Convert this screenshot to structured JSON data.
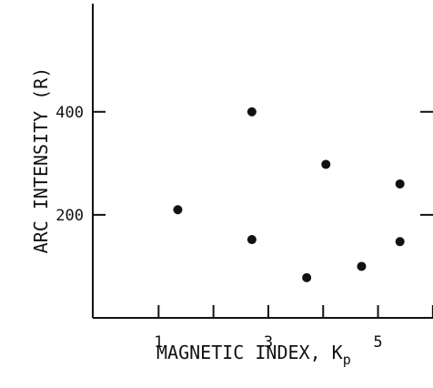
{
  "chart_data": {
    "type": "scatter",
    "xlabel": "MAGNETIC INDEX, K",
    "xlabel_subscript": "p",
    "ylabel": "ARC INTENSITY (R)",
    "xlim": [
      -0.2,
      6.5
    ],
    "ylim": [
      0,
      610
    ],
    "x_ticks": [
      1,
      2,
      3,
      4,
      5,
      6
    ],
    "x_tick_labels": [
      "1",
      "3",
      "5"
    ],
    "x_labeled_ticks": [
      1,
      3,
      5
    ],
    "y_ticks": [
      200,
      400
    ],
    "y_tick_labels": [
      "200",
      "400"
    ],
    "grid": false,
    "marker_color": "#111111",
    "points": [
      {
        "x": 1.35,
        "y": 210
      },
      {
        "x": 2.7,
        "y": 400
      },
      {
        "x": 2.7,
        "y": 152
      },
      {
        "x": 3.7,
        "y": 78
      },
      {
        "x": 4.05,
        "y": 298
      },
      {
        "x": 4.7,
        "y": 100
      },
      {
        "x": 5.4,
        "y": 260
      },
      {
        "x": 5.4,
        "y": 148
      }
    ]
  }
}
